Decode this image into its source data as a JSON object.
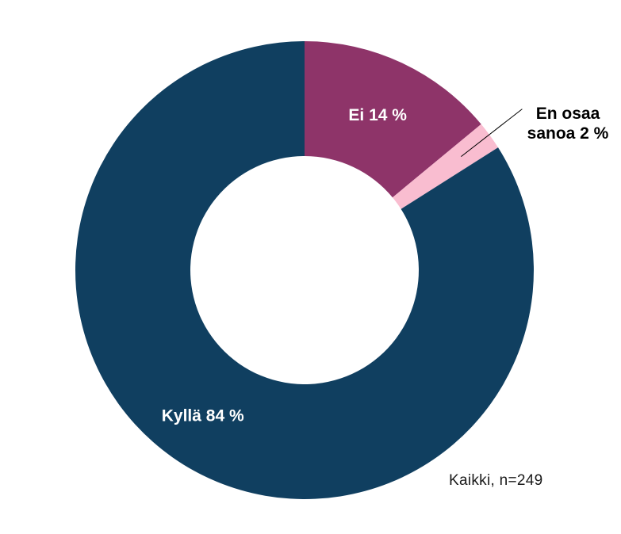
{
  "chart_data": {
    "type": "pie",
    "donut": true,
    "categories": [
      "Ei",
      "En osaa sanoa",
      "Kyllä"
    ],
    "values": [
      14,
      2,
      84
    ],
    "unit": "%",
    "colors": [
      "#8e3469",
      "#f9bdd0",
      "#103f60"
    ],
    "labels": [
      {
        "category": "Ei",
        "lines": [
          "Ei 14 %"
        ],
        "placement": "inside"
      },
      {
        "category": "En osaa sanoa",
        "lines": [
          "En osaa",
          "sanoa 2 %"
        ],
        "placement": "outside-with-leader"
      },
      {
        "category": "Kyllä",
        "lines": [
          "Kyllä 84 %"
        ],
        "placement": "inside"
      }
    ],
    "start": "top",
    "direction": "clockwise",
    "legend": "none",
    "note": "Kaikki, n=249"
  }
}
